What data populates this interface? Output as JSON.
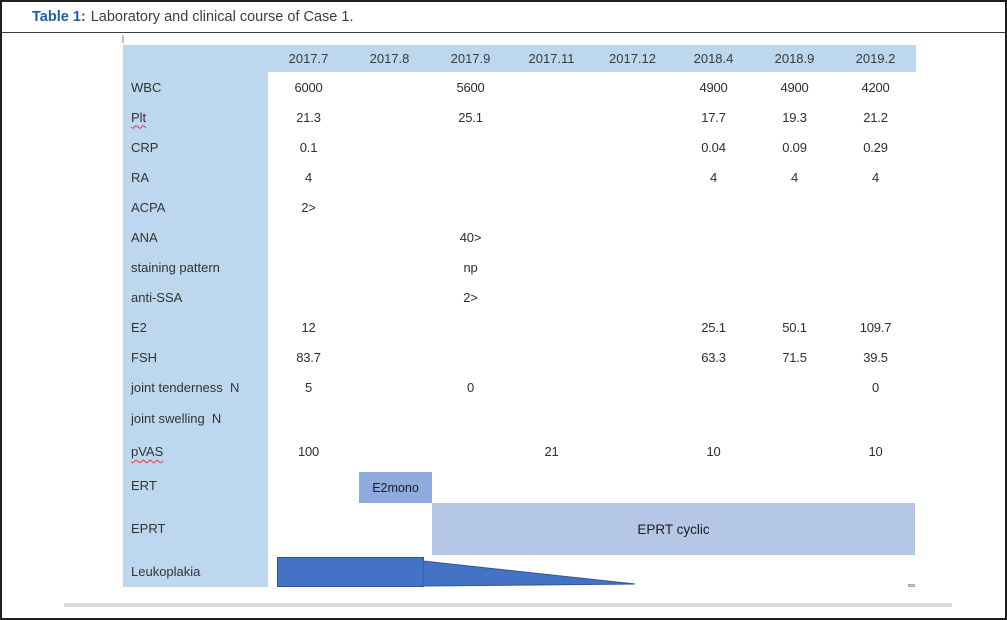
{
  "caption": {
    "label": "Table 1:",
    "text": "Laboratory and clinical course of Case 1."
  },
  "table": {
    "columns": [
      "2017.7",
      "2017.8",
      "2017.9",
      "2017.11",
      "2017.12",
      "2018.4",
      "2018.9",
      "2019.2"
    ],
    "rows": [
      {
        "label": "WBC",
        "values": [
          "6000",
          "",
          "5600",
          "",
          "",
          "4900",
          "4900",
          "4200"
        ]
      },
      {
        "label": "Plt",
        "misspelled": true,
        "values": [
          "21.3",
          "",
          "25.1",
          "",
          "",
          "17.7",
          "19.3",
          "21.2"
        ]
      },
      {
        "label": "CRP",
        "values": [
          "0.1",
          "",
          "",
          "",
          "",
          "0.04",
          "0.09",
          "0.29"
        ]
      },
      {
        "label": "RA",
        "values": [
          "4",
          "",
          "",
          "",
          "",
          "4",
          "4",
          "4"
        ]
      },
      {
        "label": "ACPA",
        "values": [
          "2>",
          "",
          "",
          "",
          "",
          "",
          "",
          ""
        ]
      },
      {
        "label": "ANA",
        "values": [
          "",
          "",
          "40>",
          "",
          "",
          "",
          "",
          ""
        ]
      },
      {
        "label": "staining pattern",
        "values": [
          "",
          "",
          "np",
          "",
          "",
          "",
          "",
          ""
        ]
      },
      {
        "label": "anti-SSA",
        "values": [
          "",
          "",
          "2>",
          "",
          "",
          "",
          "",
          ""
        ]
      },
      {
        "label": "E2",
        "values": [
          "12",
          "",
          "",
          "",
          "",
          "25.1",
          "50.1",
          "109.7"
        ]
      },
      {
        "label": "FSH",
        "values": [
          "83.7",
          "",
          "",
          "",
          "",
          "63.3",
          "71.5",
          "39.5"
        ]
      },
      {
        "label": "joint tenderness  N",
        "values": [
          "5",
          "",
          "0",
          "",
          "",
          "",
          "",
          "0"
        ]
      },
      {
        "label": "joint swelling  N",
        "values": [
          "",
          "",
          "",
          "",
          "",
          "",
          "",
          ""
        ]
      },
      {
        "label": "pVAS",
        "misspelled": true,
        "values": [
          "100",
          "",
          "",
          "21",
          "",
          "10",
          "",
          "10"
        ]
      },
      {
        "label": "ERT",
        "values": [
          "",
          "",
          "",
          "",
          "",
          "",
          "",
          ""
        ]
      },
      {
        "label": "EPRT",
        "values": [
          "",
          "",
          "",
          "",
          "",
          "",
          "",
          ""
        ]
      },
      {
        "label": "Leukoplakia",
        "values": [
          "",
          "",
          "",
          "",
          "",
          "",
          "",
          ""
        ]
      }
    ],
    "annotations": {
      "ert_box_label": "E2mono",
      "eprt_bar_label": "EPRT cyclic"
    },
    "colors": {
      "header_fill": "#bdd7ee",
      "label_fill": "#bdd7ee",
      "ert_fill": "#8faadc",
      "eprt_fill": "#b4c7e7",
      "leukoplakia_fill": "#4472c4",
      "leukoplakia_border": "#2f5597",
      "caption_accent": "#1e5cab",
      "spellcheck_underline": "#e03c31"
    }
  }
}
